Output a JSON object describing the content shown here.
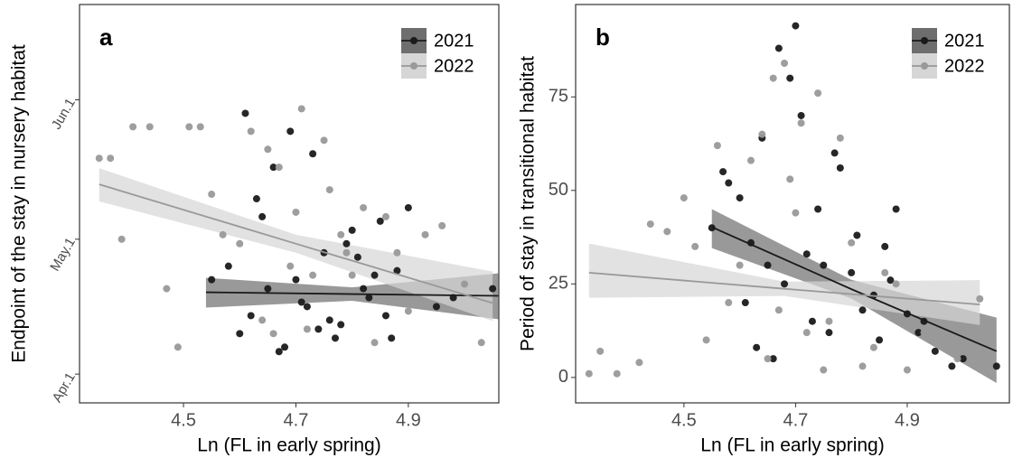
{
  "chart_data": [
    {
      "type": "scatter",
      "panel_label": "a",
      "x_label": "Ln (FL in early spring)",
      "y_label": "Endpoint of the stay in nursery habitat",
      "xlim": [
        4.315,
        5.061
      ],
      "ylim": [
        84.6,
        173.2
      ],
      "xticks": [
        4.5,
        4.7,
        4.9
      ],
      "yticks": [
        {
          "value": 91,
          "label": "Apr.1"
        },
        {
          "value": 121,
          "label": "May.1"
        },
        {
          "value": 152,
          "label": "Jun.1"
        }
      ],
      "legend": "top-right",
      "series": [
        {
          "name": "2021",
          "color": "#1a1a1a",
          "band_color": "#6e6e6e",
          "x": [
            4.6,
            4.62,
            4.65,
            4.68,
            4.7,
            4.72,
            4.75,
            4.78,
            4.8,
            4.83,
            4.85,
            4.88,
            4.9,
            4.55,
            4.58,
            4.63,
            4.66,
            4.69,
            4.71,
            4.74,
            4.77,
            4.79,
            4.82,
            4.86,
            4.95,
            5.05,
            4.64,
            4.73,
            4.81,
            4.87,
            4.98,
            4.67,
            4.76,
            4.84,
            4.61
          ],
          "values": [
            100,
            104,
            110,
            97,
            112,
            106,
            118,
            102,
            123,
            108,
            125,
            114,
            128,
            112,
            115,
            130,
            137,
            145,
            107,
            101,
            99,
            120,
            110,
            104,
            106,
            110,
            126,
            140,
            117,
            99,
            108,
            96,
            103,
            113,
            149
          ],
          "fit": {
            "x": [
              4.54,
              4.8,
              5.06
            ],
            "values": [
              109.2,
              108.8,
              108.4
            ],
            "lower": [
              105.8,
              107.3,
              103.2
            ],
            "upper": [
              112.4,
              110.3,
              113.4
            ]
          }
        },
        {
          "name": "2022",
          "color": "#999999",
          "band_color": "#d6d6d6",
          "x": [
            4.35,
            4.37,
            4.39,
            4.41,
            4.44,
            4.47,
            4.49,
            4.51,
            4.53,
            4.55,
            4.57,
            4.6,
            4.62,
            4.64,
            4.65,
            4.67,
            4.69,
            4.7,
            4.72,
            4.74,
            4.76,
            4.78,
            4.8,
            4.82,
            4.84,
            4.86,
            4.88,
            4.9,
            4.93,
            4.96,
            5.0,
            5.03,
            4.66,
            4.71,
            4.75,
            4.79,
            4.63,
            4.73
          ],
          "values": [
            139,
            139,
            121,
            146,
            146,
            110,
            97,
            146,
            146,
            131,
            122,
            120,
            145,
            103,
            141,
            137,
            115,
            127,
            101,
            109,
            132,
            122,
            113,
            128,
            98,
            126,
            118,
            105,
            122,
            124,
            111,
            98,
            100,
            150,
            143,
            118,
            108,
            113
          ],
          "fit": {
            "x": [
              4.35,
              4.7,
              5.05
            ],
            "values": [
              133.2,
              120,
              106.8
            ],
            "lower": [
              129.4,
              118,
              102.8
            ],
            "upper": [
              136.8,
              122,
              113.8
            ]
          }
        }
      ]
    },
    {
      "type": "scatter",
      "panel_label": "b",
      "x_label": "Ln (FL in early spring)",
      "y_label": "Period of stay in transitional habitat",
      "xlim": [
        4.306,
        5.083
      ],
      "ylim": [
        -6.8,
        99.7
      ],
      "xticks": [
        4.5,
        4.7,
        4.9
      ],
      "yticks": [
        0,
        25,
        50,
        75
      ],
      "legend": "top-right",
      "series": [
        {
          "name": "2021",
          "color": "#1a1a1a",
          "band_color": "#6e6e6e",
          "x": [
            4.55,
            4.57,
            4.6,
            4.62,
            4.64,
            4.65,
            4.67,
            4.69,
            4.7,
            4.71,
            4.72,
            4.74,
            4.76,
            4.78,
            4.8,
            4.82,
            4.84,
            4.86,
            4.88,
            4.9,
            4.92,
            4.95,
            4.98,
            5.0,
            5.06,
            4.63,
            4.68,
            4.73,
            4.77,
            4.81,
            4.85,
            4.58,
            4.61,
            4.66,
            4.75,
            4.87,
            4.93
          ],
          "values": [
            40,
            55,
            48,
            36,
            64,
            30,
            88,
            80,
            94,
            70,
            33,
            45,
            12,
            56,
            28,
            18,
            22,
            35,
            45,
            17,
            12,
            7,
            3,
            5,
            3,
            8,
            25,
            15,
            60,
            38,
            10,
            52,
            20,
            5,
            30,
            26,
            15
          ],
          "fit": {
            "x": [
              4.55,
              4.8,
              5.06
            ],
            "values": [
              40.2,
              23.6,
              7
            ],
            "lower": [
              34.6,
              21.1,
              -1.5
            ],
            "upper": [
              45,
              26.1,
              16
            ]
          }
        },
        {
          "name": "2022",
          "color": "#999999",
          "band_color": "#d6d6d6",
          "x": [
            4.33,
            4.35,
            4.38,
            4.42,
            4.44,
            4.47,
            4.5,
            4.52,
            4.54,
            4.56,
            4.58,
            4.6,
            4.62,
            4.64,
            4.66,
            4.68,
            4.7,
            4.72,
            4.74,
            4.76,
            4.78,
            4.8,
            4.82,
            4.84,
            4.86,
            4.88,
            4.9,
            4.93,
            4.96,
            4.99,
            5.03,
            4.65,
            4.71,
            4.69,
            4.75,
            4.67
          ],
          "values": [
            1,
            7,
            1,
            4,
            41,
            39,
            48,
            35,
            10,
            62,
            20,
            30,
            58,
            65,
            80,
            84,
            44,
            12,
            76,
            15,
            64,
            36,
            3,
            8,
            28,
            25,
            2,
            12,
            10,
            5,
            21,
            5,
            68,
            53,
            2,
            18
          ],
          "fit": {
            "x": [
              4.33,
              4.68,
              5.03
            ],
            "values": [
              28,
              23.7,
              19.5
            ],
            "lower": [
              21.3,
              21.8,
              14
            ],
            "upper": [
              35.8,
              25.6,
              26
            ]
          }
        }
      ]
    }
  ]
}
